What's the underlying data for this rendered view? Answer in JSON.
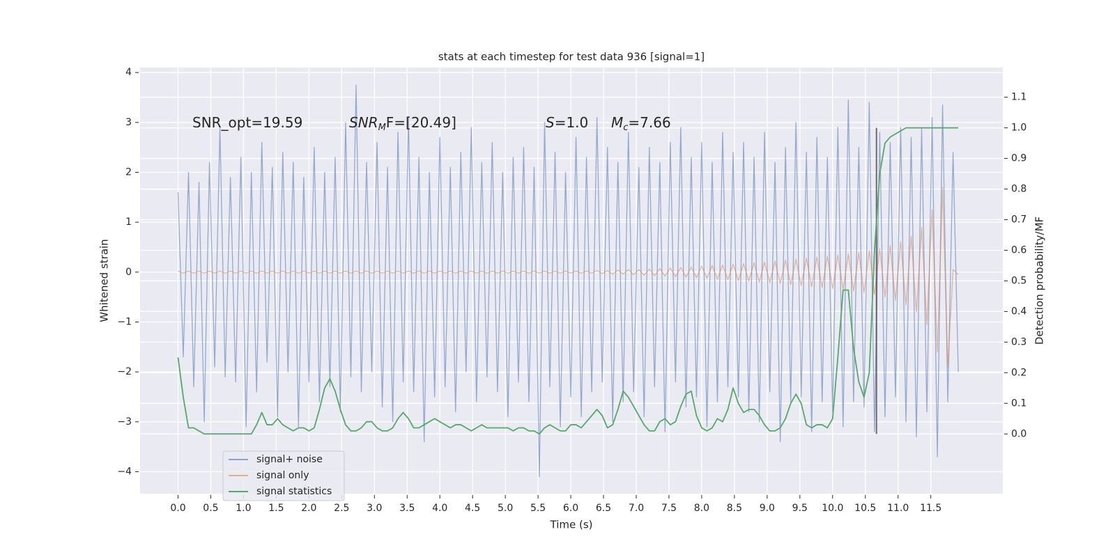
{
  "chart_data": {
    "type": "line",
    "title": "stats at each timestep for test data 936 [signal=1]",
    "xlabel": "Time (s)",
    "ylabel": "Whitened strain",
    "y2label": "Detection probability/MF",
    "grid": true,
    "legend": "lower left",
    "xlim": [
      -0.58,
      12.6
    ],
    "ylim": [
      -4.44,
      4.1
    ],
    "y2lim": [
      -0.195,
      1.197
    ],
    "xticks": [
      {
        "value": 0,
        "label": "0.0"
      },
      0.5,
      {
        "value": 1,
        "label": "1.0"
      },
      1.5,
      {
        "value": 2,
        "label": "2.0"
      },
      2.5,
      {
        "value": 3,
        "label": "3.0"
      },
      3.5,
      {
        "value": 4,
        "label": "4.0"
      },
      4.5,
      {
        "value": 5,
        "label": "5.0"
      },
      5.5,
      {
        "value": 6,
        "label": "6.0"
      },
      6.5,
      {
        "value": 7,
        "label": "7.0"
      },
      7.5,
      {
        "value": 8,
        "label": "8.0"
      },
      8.5,
      {
        "value": 9,
        "label": "9.0"
      },
      9.5,
      {
        "value": 10,
        "label": "10.0"
      },
      10.5,
      {
        "value": 11,
        "label": "11.0"
      },
      11.5
    ],
    "yticks": [
      {
        "value": -4,
        "label": "−4"
      },
      {
        "value": -3,
        "label": "−3"
      },
      {
        "value": -2,
        "label": "−2"
      },
      {
        "value": -1,
        "label": "−1"
      },
      0,
      1,
      2,
      3,
      4
    ],
    "y2ticks": [
      {
        "value": 0,
        "label": "0.0"
      },
      0.1,
      0.2,
      0.3,
      0.4,
      0.5,
      0.6,
      0.7,
      0.8,
      0.9,
      {
        "value": 1,
        "label": "1.0"
      },
      1.1
    ],
    "annotations": [
      [
        {
          "text": "SNR_opt=19.59"
        }
      ],
      [
        {
          "text": "SNR",
          "style": "italic"
        },
        {
          "text": "M",
          "style": "sub"
        },
        {
          "text": "F=[20.49]"
        }
      ],
      [
        {
          "text": "S",
          "style": "italic"
        },
        {
          "text": "=1.0"
        }
      ],
      [
        {
          "text": "M",
          "style": "italic"
        },
        {
          "text": "c",
          "style": "sub"
        },
        {
          "text": "=7.66"
        }
      ]
    ],
    "vline": {
      "x": 10.67,
      "y2": [
        0,
        1
      ],
      "color": "#404040"
    },
    "x": [
      0,
      0.08,
      0.16,
      0.24,
      0.32,
      0.4,
      0.48,
      0.56,
      0.64,
      0.72,
      0.8,
      0.88,
      0.96,
      1.04,
      1.12,
      1.2,
      1.28,
      1.36,
      1.44,
      1.52,
      1.6,
      1.68,
      1.76,
      1.84,
      1.92,
      2,
      2.08,
      2.16,
      2.24,
      2.32,
      2.4,
      2.48,
      2.56,
      2.64,
      2.72,
      2.8,
      2.88,
      2.96,
      3.04,
      3.12,
      3.2,
      3.28,
      3.36,
      3.44,
      3.52,
      3.6,
      3.68,
      3.76,
      3.84,
      3.92,
      4,
      4.08,
      4.16,
      4.24,
      4.32,
      4.4,
      4.48,
      4.56,
      4.64,
      4.72,
      4.8,
      4.88,
      4.96,
      5.04,
      5.12,
      5.2,
      5.28,
      5.36,
      5.44,
      5.52,
      5.6,
      5.68,
      5.76,
      5.84,
      5.92,
      6,
      6.08,
      6.16,
      6.24,
      6.32,
      6.4,
      6.48,
      6.56,
      6.64,
      6.72,
      6.8,
      6.88,
      6.96,
      7.04,
      7.12,
      7.2,
      7.28,
      7.36,
      7.44,
      7.52,
      7.6,
      7.68,
      7.76,
      7.84,
      7.92,
      8,
      8.08,
      8.16,
      8.24,
      8.32,
      8.4,
      8.48,
      8.56,
      8.64,
      8.72,
      8.8,
      8.88,
      8.96,
      9.04,
      9.12,
      9.2,
      9.28,
      9.36,
      9.44,
      9.52,
      9.6,
      9.68,
      9.76,
      9.84,
      9.92,
      10,
      10.08,
      10.16,
      10.24,
      10.32,
      10.4,
      10.48,
      10.56,
      10.64,
      10.72,
      10.8,
      10.88,
      10.96,
      11.04,
      11.12,
      11.2,
      11.28,
      11.36,
      11.44,
      11.52,
      11.6,
      11.68,
      11.76,
      11.84,
      11.92
    ],
    "series": [
      {
        "name": "signal+ noise",
        "color": "#4c72b0",
        "axis": "y",
        "values": [
          1.6,
          -1.7,
          2.0,
          -2.3,
          1.8,
          -3.0,
          2.2,
          -1.9,
          2.9,
          -2.1,
          1.9,
          -2.2,
          2.3,
          -3.1,
          2.0,
          -2.4,
          2.6,
          -1.8,
          2.1,
          -2.9,
          2.4,
          -2.0,
          2.2,
          -3.1,
          1.9,
          -2.2,
          2.5,
          -2.6,
          2.0,
          -2.3,
          2.3,
          -2.8,
          3.0,
          -2.1,
          3.75,
          -2.4,
          2.2,
          -2.0,
          2.6,
          -2.7,
          2.1,
          -3.0,
          2.8,
          -2.2,
          3.1,
          -2.4,
          2.3,
          -3.4,
          2.0,
          -2.5,
          2.7,
          -2.3,
          2.1,
          -2.8,
          2.4,
          -2.0,
          2.9,
          -2.6,
          2.2,
          -2.1,
          2.6,
          -2.4,
          2.0,
          -2.9,
          2.3,
          -2.2,
          2.5,
          -2.6,
          2.1,
          -4.1,
          3.0,
          -2.3,
          2.4,
          -3.1,
          2.0,
          -2.5,
          2.7,
          -2.9,
          2.3,
          -2.4,
          3.1,
          -2.2,
          2.5,
          -3.0,
          2.2,
          -2.6,
          2.8,
          -2.4,
          2.1,
          -2.9,
          2.5,
          -2.3,
          2.2,
          -3.2,
          2.6,
          -2.2,
          2.9,
          -2.7,
          2.3,
          -2.5,
          2.6,
          -3.1,
          2.2,
          -2.6,
          2.8,
          -2.3,
          2.4,
          -2.5,
          2.6,
          -2.8,
          2.3,
          -3.0,
          2.8,
          -2.4,
          2.2,
          -3.4,
          2.5,
          -2.6,
          3.0,
          -2.5,
          2.4,
          -3.2,
          2.7,
          -2.6,
          2.3,
          -2.8,
          2.9,
          -3.1,
          3.45,
          -2.6,
          2.5,
          -2.7,
          3.4,
          -3.2,
          2.8,
          -2.9,
          2.6,
          -2.5,
          2.9,
          -3.0,
          2.7,
          -3.3,
          2.9,
          -2.8,
          3.1,
          -3.7,
          3.35,
          -2.6,
          2.4,
          -2.0
        ]
      },
      {
        "name": "signal only",
        "color": "#dd8452",
        "axis": "y",
        "values": [
          0.02,
          -0.02,
          0.02,
          -0.02,
          0.02,
          -0.02,
          0.02,
          -0.02,
          0.02,
          -0.02,
          0.02,
          -0.02,
          0.02,
          -0.02,
          0.02,
          -0.02,
          0.02,
          -0.02,
          0.02,
          -0.02,
          0.02,
          -0.02,
          0.02,
          -0.02,
          0.02,
          -0.02,
          0.02,
          -0.02,
          0.02,
          -0.02,
          0.02,
          -0.02,
          0.02,
          -0.02,
          0.02,
          -0.02,
          0.02,
          -0.02,
          0.02,
          -0.02,
          0.02,
          -0.02,
          0.02,
          -0.02,
          0.02,
          -0.02,
          0.02,
          -0.02,
          0.02,
          -0.02,
          0.02,
          -0.02,
          0.02,
          -0.02,
          0.02,
          -0.02,
          0.02,
          -0.02,
          0.02,
          -0.02,
          0.02,
          -0.02,
          0.02,
          -0.02,
          0.02,
          -0.02,
          0.02,
          -0.02,
          0.02,
          -0.02,
          0.02,
          -0.02,
          0.02,
          -0.02,
          0.02,
          -0.02,
          0.02,
          -0.02,
          0.02,
          -0.02,
          0.03,
          -0.03,
          0.03,
          -0.04,
          0.04,
          -0.04,
          0.05,
          -0.05,
          0.05,
          -0.06,
          0.06,
          -0.07,
          0.07,
          -0.08,
          0.08,
          -0.09,
          0.09,
          -0.1,
          0.1,
          -0.11,
          0.12,
          -0.12,
          0.13,
          -0.14,
          0.14,
          -0.15,
          0.16,
          -0.17,
          0.17,
          -0.18,
          0.19,
          -0.2,
          0.2,
          -0.21,
          0.22,
          -0.23,
          0.24,
          -0.25,
          0.26,
          -0.27,
          0.28,
          -0.29,
          0.3,
          -0.31,
          0.32,
          -0.33,
          0.34,
          -0.35,
          0.36,
          -0.38,
          0.39,
          -0.41,
          0.43,
          -0.45,
          0.47,
          -0.5,
          0.53,
          -0.57,
          0.61,
          -0.66,
          0.72,
          -0.8,
          0.9,
          -1.05,
          1.25,
          -1.6,
          1.7,
          -1.9,
          0.05,
          -0.05
        ]
      },
      {
        "name": "signal statistics",
        "color": "#55a868",
        "axis": "y2",
        "values": [
          0.25,
          0.12,
          0.02,
          0.02,
          0.01,
          0.0,
          0.0,
          0.0,
          0.0,
          0.0,
          0.0,
          0.0,
          0.0,
          0.0,
          0.0,
          0.03,
          0.07,
          0.03,
          0.03,
          0.05,
          0.03,
          0.02,
          0.01,
          0.02,
          0.02,
          0.01,
          0.02,
          0.08,
          0.15,
          0.18,
          0.14,
          0.08,
          0.03,
          0.01,
          0.01,
          0.02,
          0.04,
          0.04,
          0.02,
          0.01,
          0.01,
          0.02,
          0.05,
          0.07,
          0.05,
          0.02,
          0.02,
          0.03,
          0.04,
          0.05,
          0.04,
          0.03,
          0.02,
          0.03,
          0.03,
          0.02,
          0.01,
          0.02,
          0.03,
          0.02,
          0.02,
          0.02,
          0.02,
          0.02,
          0.01,
          0.02,
          0.02,
          0.01,
          0.01,
          0.0,
          0.02,
          0.03,
          0.02,
          0.01,
          0.01,
          0.03,
          0.03,
          0.02,
          0.04,
          0.06,
          0.08,
          0.06,
          0.02,
          0.03,
          0.08,
          0.14,
          0.12,
          0.09,
          0.06,
          0.03,
          0.01,
          0.01,
          0.04,
          0.05,
          0.03,
          0.04,
          0.09,
          0.13,
          0.14,
          0.06,
          0.02,
          0.01,
          0.02,
          0.05,
          0.04,
          0.08,
          0.15,
          0.1,
          0.07,
          0.08,
          0.08,
          0.06,
          0.03,
          0.01,
          0.01,
          0.02,
          0.05,
          0.1,
          0.13,
          0.1,
          0.03,
          0.02,
          0.03,
          0.03,
          0.02,
          0.05,
          0.25,
          0.47,
          0.47,
          0.28,
          0.17,
          0.12,
          0.2,
          0.6,
          0.85,
          0.95,
          0.97,
          0.98,
          0.99,
          1.0,
          1.0,
          1.0,
          1.0,
          1.0,
          1.0,
          1.0,
          1.0,
          1.0,
          1.0,
          1.0
        ]
      }
    ]
  }
}
